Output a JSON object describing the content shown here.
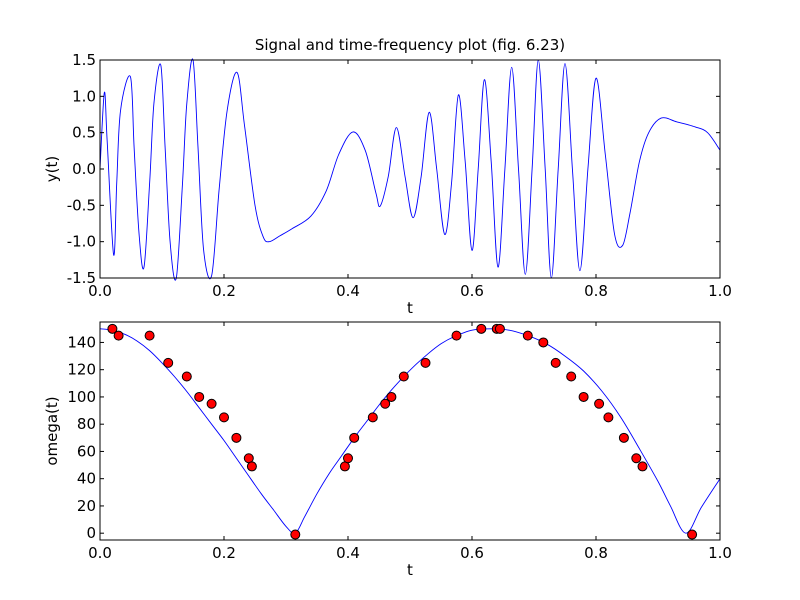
{
  "chart_data": [
    {
      "type": "line",
      "title": "Signal and time-frequency plot (fig. 6.23)",
      "xlabel": "t",
      "ylabel": "y(t)",
      "xlim": [
        0.0,
        1.0
      ],
      "ylim": [
        -1.5,
        1.5
      ],
      "xticks": [
        "0.0",
        "0.2",
        "0.4",
        "0.6",
        "0.8",
        "1.0"
      ],
      "yticks": [
        "-1.5",
        "-1.0",
        "-0.5",
        "0.0",
        "0.5",
        "1.0",
        "1.5"
      ],
      "grid": false,
      "series": [
        {
          "color": "#0000ff",
          "points": [
            [
              0.0,
              0.0
            ],
            [
              0.007,
              1.05
            ],
            [
              0.0115,
              0.4
            ],
            [
              0.022,
              -1.18
            ],
            [
              0.027,
              -0.2
            ],
            [
              0.033,
              0.8
            ],
            [
              0.049,
              1.27
            ],
            [
              0.055,
              0.3
            ],
            [
              0.063,
              -0.9
            ],
            [
              0.071,
              -1.35
            ],
            [
              0.08,
              -0.2
            ],
            [
              0.087,
              0.9
            ],
            [
              0.098,
              1.43
            ],
            [
              0.105,
              0.3
            ],
            [
              0.113,
              -1.0
            ],
            [
              0.123,
              -1.5
            ],
            [
              0.133,
              -0.2
            ],
            [
              0.14,
              0.9
            ],
            [
              0.15,
              1.5
            ],
            [
              0.158,
              0.3
            ],
            [
              0.167,
              -1.1
            ],
            [
              0.18,
              -1.47
            ],
            [
              0.192,
              -0.3
            ],
            [
              0.205,
              0.8
            ],
            [
              0.221,
              1.33
            ],
            [
              0.233,
              0.6
            ],
            [
              0.25,
              -0.5
            ],
            [
              0.263,
              -0.93
            ],
            [
              0.273,
              -1.0
            ],
            [
              0.29,
              -0.92
            ],
            [
              0.31,
              -0.82
            ],
            [
              0.34,
              -0.65
            ],
            [
              0.365,
              -0.3
            ],
            [
              0.385,
              0.2
            ],
            [
              0.408,
              0.51
            ],
            [
              0.428,
              0.25
            ],
            [
              0.445,
              -0.33
            ],
            [
              0.452,
              -0.51
            ],
            [
              0.465,
              -0.1
            ],
            [
              0.478,
              0.57
            ],
            [
              0.492,
              -0.1
            ],
            [
              0.505,
              -0.67
            ],
            [
              0.518,
              -0.1
            ],
            [
              0.531,
              0.78
            ],
            [
              0.543,
              0.0
            ],
            [
              0.556,
              -0.9
            ],
            [
              0.567,
              -0.2
            ],
            [
              0.578,
              1.02
            ],
            [
              0.589,
              0.1
            ],
            [
              0.6,
              -1.12
            ],
            [
              0.61,
              0.0
            ],
            [
              0.62,
              1.23
            ],
            [
              0.631,
              0.1
            ],
            [
              0.642,
              -1.35
            ],
            [
              0.653,
              0.0
            ],
            [
              0.664,
              1.4
            ],
            [
              0.675,
              0.0
            ],
            [
              0.686,
              -1.45
            ],
            [
              0.697,
              0.0
            ],
            [
              0.707,
              1.5
            ],
            [
              0.718,
              0.0
            ],
            [
              0.728,
              -1.5
            ],
            [
              0.739,
              0.0
            ],
            [
              0.75,
              1.45
            ],
            [
              0.762,
              0.0
            ],
            [
              0.774,
              -1.4
            ],
            [
              0.787,
              0.0
            ],
            [
              0.8,
              1.25
            ],
            [
              0.815,
              0.2
            ],
            [
              0.83,
              -0.9
            ],
            [
              0.843,
              -1.05
            ],
            [
              0.855,
              -0.6
            ],
            [
              0.87,
              0.1
            ],
            [
              0.885,
              0.5
            ],
            [
              0.905,
              0.7
            ],
            [
              0.93,
              0.65
            ],
            [
              0.96,
              0.58
            ],
            [
              0.98,
              0.5
            ],
            [
              1.0,
              0.26
            ]
          ]
        }
      ]
    },
    {
      "type": "scatter",
      "xlabel": "t",
      "ylabel": "omega(t)",
      "xlim": [
        0.0,
        1.0
      ],
      "ylim": [
        -5,
        155
      ],
      "xticks": [
        "0.0",
        "0.2",
        "0.4",
        "0.6",
        "0.8",
        "1.0"
      ],
      "yticks": [
        "0",
        "20",
        "40",
        "60",
        "80",
        "100",
        "120",
        "140"
      ],
      "grid": false,
      "series": [
        {
          "style": "line",
          "color": "#0000ff",
          "points": [
            [
              0.0,
              150
            ],
            [
              0.02,
              149
            ],
            [
              0.04,
              146
            ],
            [
              0.06,
              141
            ],
            [
              0.08,
              134
            ],
            [
              0.1,
              125
            ],
            [
              0.12,
              115
            ],
            [
              0.14,
              104
            ],
            [
              0.16,
              92
            ],
            [
              0.18,
              80
            ],
            [
              0.2,
              68
            ],
            [
              0.22,
              55
            ],
            [
              0.24,
              42
            ],
            [
              0.26,
              29
            ],
            [
              0.28,
              17
            ],
            [
              0.3,
              5
            ],
            [
              0.315,
              0
            ],
            [
              0.33,
              12
            ],
            [
              0.35,
              29
            ],
            [
              0.37,
              44
            ],
            [
              0.39,
              57
            ],
            [
              0.41,
              70
            ],
            [
              0.43,
              82
            ],
            [
              0.45,
              94
            ],
            [
              0.47,
              105
            ],
            [
              0.49,
              115
            ],
            [
              0.51,
              124
            ],
            [
              0.53,
              132
            ],
            [
              0.55,
              139
            ],
            [
              0.57,
              144
            ],
            [
              0.6,
              149
            ],
            [
              0.63,
              150
            ],
            [
              0.66,
              149
            ],
            [
              0.69,
              145
            ],
            [
              0.72,
              139
            ],
            [
              0.75,
              130
            ],
            [
              0.78,
              119
            ],
            [
              0.81,
              104
            ],
            [
              0.84,
              85
            ],
            [
              0.87,
              62
            ],
            [
              0.9,
              38
            ],
            [
              0.92,
              20
            ],
            [
              0.945,
              0
            ],
            [
              0.97,
              19
            ],
            [
              1.0,
              40
            ]
          ]
        },
        {
          "style": "markers",
          "color": "#ff0000",
          "points": [
            [
              0.02,
              150
            ],
            [
              0.03,
              145
            ],
            [
              0.08,
              145
            ],
            [
              0.11,
              125
            ],
            [
              0.14,
              115
            ],
            [
              0.16,
              100
            ],
            [
              0.18,
              95
            ],
            [
              0.2,
              85
            ],
            [
              0.22,
              70
            ],
            [
              0.24,
              55
            ],
            [
              0.245,
              49
            ],
            [
              0.315,
              -1
            ],
            [
              0.395,
              49
            ],
            [
              0.4,
              55
            ],
            [
              0.41,
              70
            ],
            [
              0.44,
              85
            ],
            [
              0.46,
              95
            ],
            [
              0.47,
              100
            ],
            [
              0.49,
              115
            ],
            [
              0.525,
              125
            ],
            [
              0.575,
              145
            ],
            [
              0.615,
              150
            ],
            [
              0.64,
              150
            ],
            [
              0.645,
              150
            ],
            [
              0.69,
              145
            ],
            [
              0.715,
              140
            ],
            [
              0.735,
              125
            ],
            [
              0.76,
              115
            ],
            [
              0.78,
              100
            ],
            [
              0.805,
              95
            ],
            [
              0.82,
              85
            ],
            [
              0.845,
              70
            ],
            [
              0.865,
              55
            ],
            [
              0.875,
              49
            ],
            [
              0.955,
              -1
            ]
          ]
        }
      ]
    }
  ]
}
